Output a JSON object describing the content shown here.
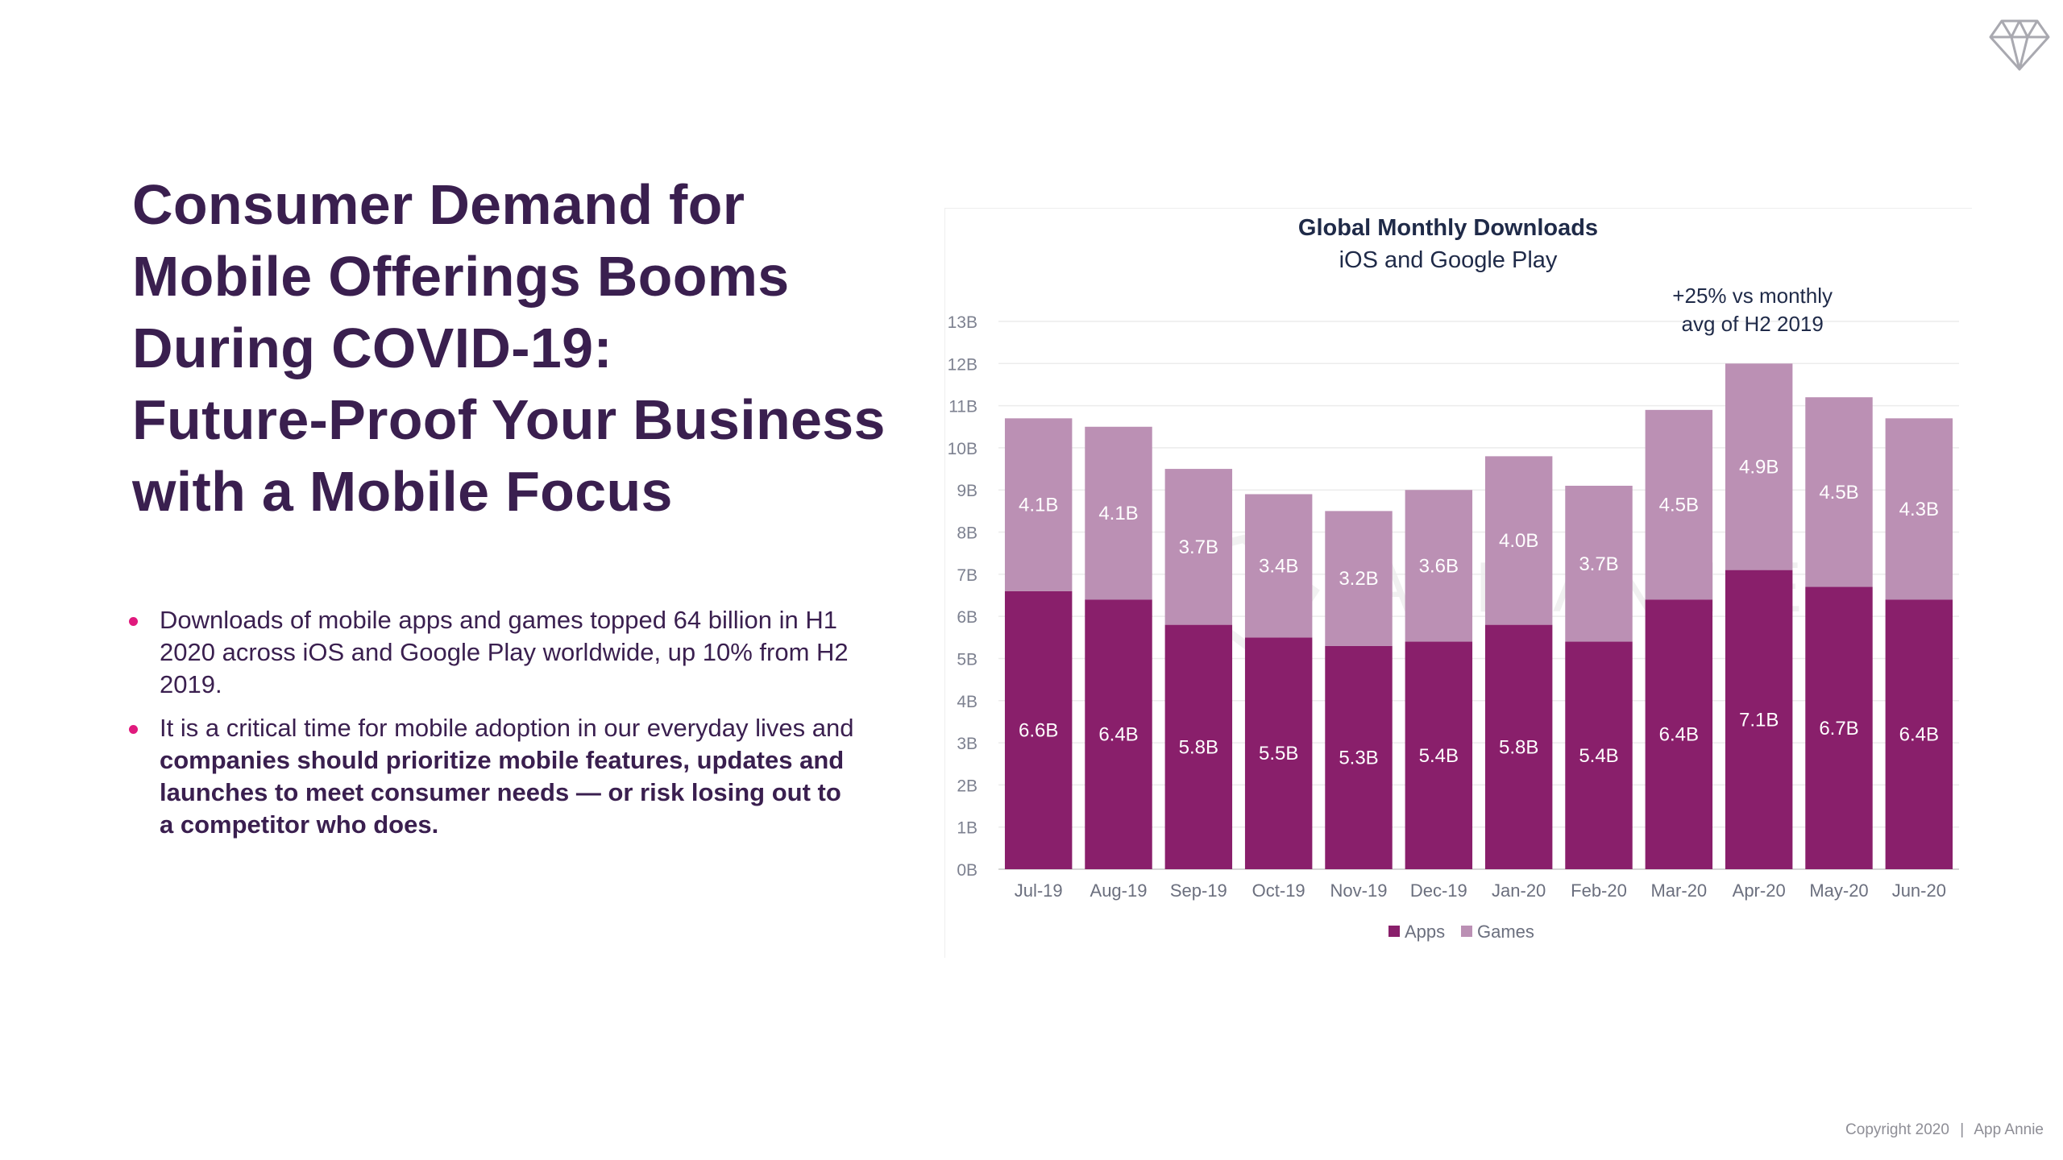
{
  "headline_lines": [
    "Consumer Demand for",
    "Mobile Offerings Booms",
    "During COVID-19:",
    "Future-Proof Your Business",
    "with a Mobile Focus"
  ],
  "bullets": [
    {
      "text": "Downloads of mobile apps and games topped 64 billion in H1 2020 across iOS and Google Play worldwide, up 10% from H2 2019.",
      "bold": ""
    },
    {
      "text": "It is a critical time for mobile adoption in our everyday lives and ",
      "bold": "companies should prioritize mobile features, updates and launches to meet consumer needs — or risk losing out to a competitor who does."
    }
  ],
  "footer": {
    "copyright": "Copyright 2020",
    "separator": "|",
    "brand": "App Annie"
  },
  "logo_icon": "diamond-icon",
  "colors": {
    "headline": "#3a1f4f",
    "bullet": "#e0197d",
    "apps": "#891f6b",
    "games": "#bb90b4"
  },
  "chart_data": {
    "type": "bar",
    "stacked": true,
    "title": "Global Monthly Downloads",
    "subtitle": "iOS and Google Play",
    "annotation": {
      "lines": [
        "+25% vs monthly",
        "avg of H2 2019"
      ],
      "category": "Apr-20"
    },
    "watermark": "APP ANNIE",
    "categories": [
      "Jul-19",
      "Aug-19",
      "Sep-19",
      "Oct-19",
      "Nov-19",
      "Dec-19",
      "Jan-20",
      "Feb-20",
      "Mar-20",
      "Apr-20",
      "May-20",
      "Jun-20"
    ],
    "series": [
      {
        "name": "Apps",
        "color": "#891f6b",
        "values": [
          6.6,
          6.4,
          5.8,
          5.5,
          5.3,
          5.4,
          5.8,
          5.4,
          6.4,
          7.1,
          6.7,
          6.4
        ],
        "labels": [
          "6.6B",
          "6.4B",
          "5.8B",
          "5.5B",
          "5.3B",
          "5.4B",
          "5.8B",
          "5.4B",
          "6.4B",
          "7.1B",
          "6.7B",
          "6.4B"
        ]
      },
      {
        "name": "Games",
        "color": "#bb90b4",
        "values": [
          4.1,
          4.1,
          3.7,
          3.4,
          3.2,
          3.6,
          4.0,
          3.7,
          4.5,
          4.9,
          4.5,
          4.3
        ],
        "labels": [
          "4.1B",
          "4.1B",
          "3.7B",
          "3.4B",
          "3.2B",
          "3.6B",
          "4.0B",
          "3.7B",
          "4.5B",
          "4.9B",
          "4.5B",
          "4.3B"
        ]
      }
    ],
    "yticks": [
      "0B",
      "1B",
      "2B",
      "3B",
      "4B",
      "5B",
      "6B",
      "7B",
      "8B",
      "9B",
      "10B",
      "11B",
      "12B",
      "13B"
    ],
    "ylim": [
      0,
      13
    ],
    "grid": true,
    "legend_position": "bottom"
  }
}
